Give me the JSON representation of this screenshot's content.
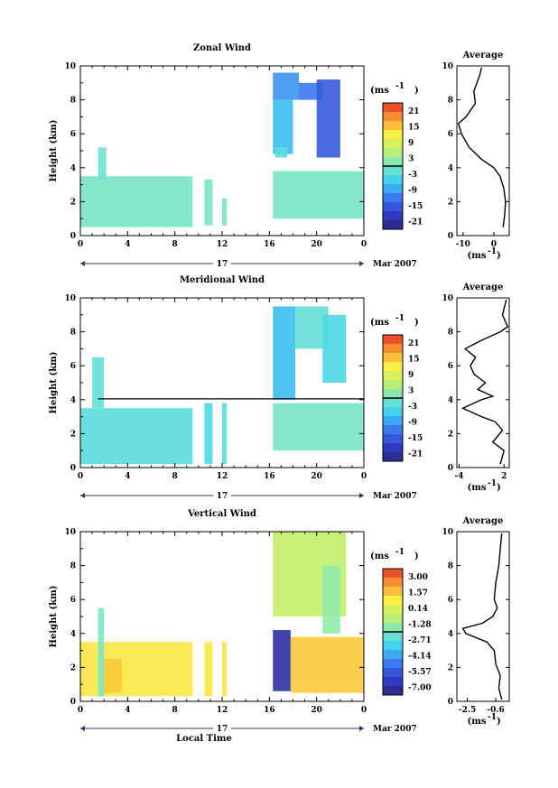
{
  "colorbar_unit": "(ms",
  "colorbar_unit_exp": "-1",
  "date_label": "Mar 2007",
  "day_label": "17",
  "avg_title": "Average",
  "avg_xunit": "(ms",
  "avg_xunit_exp": "-1",
  "ylabel": "Height (km)",
  "xlabel": "Local Time",
  "chart_data": [
    {
      "type": "heatmap",
      "title": "Zonal Wind",
      "xlabel": "",
      "ylabel": "Height (km)",
      "x_ticks": [
        "0",
        "4",
        "8",
        "12",
        "16",
        "20",
        "0"
      ],
      "y_ticks": [
        "0",
        "2",
        "4",
        "6",
        "8",
        "10"
      ],
      "xlim": [
        0,
        24
      ],
      "ylim": [
        0,
        10
      ],
      "colorbar_ticks": [
        "21",
        "15",
        "9",
        "3",
        "-3",
        "-9",
        "-15",
        "-21"
      ],
      "colorbar_range": [
        -24,
        24
      ],
      "cells": [
        {
          "x0": 0.0,
          "x1": 9.5,
          "y0": 0.5,
          "y1": 3.5,
          "value": 0
        },
        {
          "x0": 1.5,
          "x1": 2.2,
          "y0": 3.3,
          "y1": 5.2,
          "value": -1
        },
        {
          "x0": 10.5,
          "x1": 11.2,
          "y0": 0.6,
          "y1": 3.3,
          "value": 0
        },
        {
          "x0": 12.0,
          "x1": 12.4,
          "y0": 0.6,
          "y1": 2.2,
          "value": 0
        },
        {
          "x0": 16.3,
          "x1": 24.0,
          "y0": 1.0,
          "y1": 3.8,
          "value": 0
        },
        {
          "x0": 16.3,
          "x1": 18.0,
          "y0": 4.8,
          "y1": 8.0,
          "value": -7
        },
        {
          "x0": 16.3,
          "x1": 18.5,
          "y0": 8.0,
          "y1": 9.6,
          "value": -10
        },
        {
          "x0": 18.5,
          "x1": 20.5,
          "y0": 8.0,
          "y1": 9.0,
          "value": -12
        },
        {
          "x0": 20.0,
          "x1": 22.0,
          "y0": 4.6,
          "y1": 9.2,
          "value": -15
        },
        {
          "x0": 16.5,
          "x1": 17.5,
          "y0": 4.6,
          "y1": 5.2,
          "value": -3
        }
      ],
      "avg": {
        "title": "Average",
        "xlim": [
          -12,
          5
        ],
        "x_ticks": [
          "-10",
          "0"
        ],
        "y_ticks": [
          "0",
          "2",
          "4",
          "6",
          "8",
          "10"
        ],
        "profile": [
          {
            "x": 3.0,
            "y": 0.5
          },
          {
            "x": 3.5,
            "y": 1.2
          },
          {
            "x": 3.8,
            "y": 2.0
          },
          {
            "x": 3.2,
            "y": 2.8
          },
          {
            "x": 2.0,
            "y": 3.5
          },
          {
            "x": 0.0,
            "y": 4.0
          },
          {
            "x": -4.0,
            "y": 4.5
          },
          {
            "x": -8.0,
            "y": 5.2
          },
          {
            "x": -10.5,
            "y": 6.0
          },
          {
            "x": -11.5,
            "y": 6.6
          },
          {
            "x": -9.0,
            "y": 7.0
          },
          {
            "x": -6.0,
            "y": 7.8
          },
          {
            "x": -6.5,
            "y": 8.5
          },
          {
            "x": -5.5,
            "y": 9.0
          },
          {
            "x": -4.5,
            "y": 9.5
          },
          {
            "x": -4.0,
            "y": 9.9
          }
        ]
      }
    },
    {
      "type": "heatmap",
      "title": "Meridional Wind",
      "xlabel": "",
      "ylabel": "Height (km)",
      "x_ticks": [
        "0",
        "4",
        "8",
        "12",
        "16",
        "20",
        "0"
      ],
      "y_ticks": [
        "0",
        "2",
        "4",
        "6",
        "8",
        "10"
      ],
      "xlim": [
        0,
        24
      ],
      "ylim": [
        0,
        10
      ],
      "colorbar_ticks": [
        "21",
        "15",
        "9",
        "3",
        "-3",
        "-9",
        "-15",
        "-21"
      ],
      "colorbar_range": [
        -24,
        24
      ],
      "cells": [
        {
          "x0": 0.0,
          "x1": 9.5,
          "y0": 0.2,
          "y1": 3.5,
          "value": -3
        },
        {
          "x0": 1.0,
          "x1": 2.0,
          "y0": 3.5,
          "y1": 6.5,
          "value": -2
        },
        {
          "x0": 10.5,
          "x1": 11.2,
          "y0": 0.2,
          "y1": 3.8,
          "value": -4
        },
        {
          "x0": 12.0,
          "x1": 12.4,
          "y0": 0.2,
          "y1": 3.8,
          "value": -3
        },
        {
          "x0": 16.3,
          "x1": 24.0,
          "y0": 1.0,
          "y1": 3.8,
          "value": 0
        },
        {
          "x0": 16.3,
          "x1": 18.2,
          "y0": 4.0,
          "y1": 9.5,
          "value": -7
        },
        {
          "x0": 18.2,
          "x1": 21.0,
          "y0": 7.0,
          "y1": 9.5,
          "value": -2
        },
        {
          "x0": 20.5,
          "x1": 22.5,
          "y0": 5.0,
          "y1": 9.0,
          "value": -4
        }
      ],
      "avg": {
        "title": "Average",
        "xlim": [
          -4.3,
          2.7
        ],
        "x_ticks": [
          "-4",
          "2"
        ],
        "y_ticks": [
          "0",
          "2",
          "4",
          "6",
          "8",
          "10"
        ],
        "profile": [
          {
            "x": 1.5,
            "y": 0.2
          },
          {
            "x": 2.0,
            "y": 1.0
          },
          {
            "x": 0.5,
            "y": 1.5
          },
          {
            "x": 1.8,
            "y": 2.2
          },
          {
            "x": 0.8,
            "y": 2.7
          },
          {
            "x": -1.0,
            "y": 3.0
          },
          {
            "x": -3.5,
            "y": 3.5
          },
          {
            "x": -1.0,
            "y": 4.0
          },
          {
            "x": 0.5,
            "y": 4.2
          },
          {
            "x": -1.5,
            "y": 4.6
          },
          {
            "x": -0.5,
            "y": 5.0
          },
          {
            "x": -2.0,
            "y": 5.5
          },
          {
            "x": -2.5,
            "y": 6.0
          },
          {
            "x": -1.8,
            "y": 6.5
          },
          {
            "x": -3.2,
            "y": 7.0
          },
          {
            "x": -1.0,
            "y": 7.5
          },
          {
            "x": 1.5,
            "y": 8.0
          },
          {
            "x": 2.5,
            "y": 8.3
          },
          {
            "x": 1.8,
            "y": 9.0
          },
          {
            "x": 2.3,
            "y": 9.9
          }
        ]
      }
    },
    {
      "type": "heatmap",
      "title": "Vertical Wind",
      "xlabel": "Local Time",
      "ylabel": "Height (km)",
      "x_ticks": [
        "0",
        "4",
        "8",
        "12",
        "16",
        "20",
        "0"
      ],
      "y_ticks": [
        "0",
        "2",
        "4",
        "6",
        "8",
        "10"
      ],
      "xlim": [
        0,
        24
      ],
      "ylim": [
        0,
        10
      ],
      "colorbar_ticks": [
        "3.00",
        "1.57",
        "0.14",
        "-1.28",
        "-2.71",
        "-4.14",
        "-5.57",
        "-7.00"
      ],
      "colorbar_range": [
        -7.7,
        3.7
      ],
      "cells": [
        {
          "x0": 0.0,
          "x1": 9.5,
          "y0": 0.3,
          "y1": 3.5,
          "value": 1.0
        },
        {
          "x0": 1.5,
          "x1": 2.0,
          "y0": 0.3,
          "y1": 5.5,
          "value": -2.0
        },
        {
          "x0": 2.0,
          "x1": 3.5,
          "y0": 0.5,
          "y1": 2.5,
          "value": 1.5
        },
        {
          "x0": 10.5,
          "x1": 11.2,
          "y0": 0.3,
          "y1": 3.5,
          "value": 1.0
        },
        {
          "x0": 12.0,
          "x1": 12.4,
          "y0": 0.3,
          "y1": 3.5,
          "value": 1.0
        },
        {
          "x0": 16.3,
          "x1": 17.8,
          "y0": 0.6,
          "y1": 4.2,
          "value": -7.0
        },
        {
          "x0": 17.8,
          "x1": 24.0,
          "y0": 0.5,
          "y1": 3.8,
          "value": 1.5
        },
        {
          "x0": 16.3,
          "x1": 22.5,
          "y0": 5.0,
          "y1": 10.0,
          "value": -0.5
        },
        {
          "x0": 20.5,
          "x1": 22.0,
          "y0": 4.0,
          "y1": 8.0,
          "value": -1.5
        }
      ],
      "avg": {
        "title": "Average",
        "xlim": [
          -3.2,
          0.3
        ],
        "x_ticks": [
          "-2.5",
          "-0.6"
        ],
        "y_ticks": [
          "0",
          "2",
          "4",
          "6",
          "8",
          "10"
        ],
        "profile": [
          {
            "x": -0.2,
            "y": 0.1
          },
          {
            "x": -0.4,
            "y": 0.8
          },
          {
            "x": -0.3,
            "y": 1.5
          },
          {
            "x": -0.6,
            "y": 2.2
          },
          {
            "x": -0.7,
            "y": 3.0
          },
          {
            "x": -1.2,
            "y": 3.5
          },
          {
            "x": -2.6,
            "y": 4.0
          },
          {
            "x": -2.8,
            "y": 4.3
          },
          {
            "x": -1.5,
            "y": 4.6
          },
          {
            "x": -0.8,
            "y": 5.0
          },
          {
            "x": -0.5,
            "y": 5.5
          },
          {
            "x": -0.7,
            "y": 6.0
          },
          {
            "x": -0.6,
            "y": 7.0
          },
          {
            "x": -0.4,
            "y": 8.0
          },
          {
            "x": -0.3,
            "y": 9.0
          },
          {
            "x": -0.2,
            "y": 9.9
          }
        ]
      }
    }
  ]
}
